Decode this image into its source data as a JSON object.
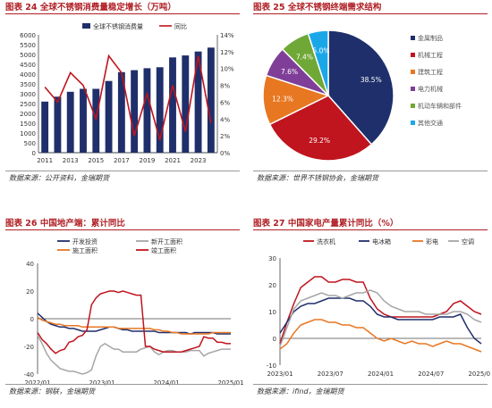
{
  "colors": {
    "accent": "#b01f24",
    "navy": "#1f2f6b",
    "red": "#c0141e",
    "orange": "#e87722",
    "gray": "#a6a6a6",
    "lightgray": "#bdbdbd"
  },
  "panels": [
    {
      "title": "图表 24  全球不锈钢消费量稳定增长（万吨）",
      "source": "数据来源：公开资料，金瑞期货"
    },
    {
      "title": "图表 25  全球不锈钢终端需求结构",
      "source": "数据来源：世界不锈钢协会，金瑞期货"
    },
    {
      "title": "图表 26  中国地产端：累计同比",
      "source": "数据来源：钢联，金瑞期货"
    },
    {
      "title": "图表 27  中国家电产量累计同比（%）",
      "source": "数据来源：ifind，金瑞期货"
    }
  ],
  "chart_data": [
    {
      "type": "bar",
      "title": "全球不锈钢消费量稳定增长（万吨）",
      "x": [
        2011,
        2012,
        2013,
        2014,
        2015,
        2016,
        2017,
        2018,
        2019,
        2020,
        2021,
        2022,
        2023,
        2024
      ],
      "xticks": [
        "2011",
        "2013",
        "2015",
        "2017",
        "2019",
        "2021",
        "2023"
      ],
      "ylim": [
        0,
        6000
      ],
      "yticks": [
        "0",
        "500",
        "1000",
        "1500",
        "2000",
        "2500",
        "3000",
        "3500",
        "4000",
        "4500",
        "5000",
        "5500",
        "6000"
      ],
      "y2lim": [
        0,
        14
      ],
      "y2ticks": [
        "0%",
        "2%",
        "4%",
        "6%",
        "8%",
        "10%",
        "12%",
        "14%"
      ],
      "series": [
        {
          "name": "全球不锈钢消费量",
          "axis": "left",
          "values": [
            2600,
            2850,
            3100,
            3250,
            3250,
            3650,
            4100,
            4200,
            4300,
            4350,
            4850,
            4950,
            5150,
            5350
          ]
        },
        {
          "name": "同比",
          "axis": "right",
          "values": [
            7.8,
            6.0,
            9.5,
            8.0,
            4.0,
            11.5,
            9.5,
            2.0,
            7.0,
            1.5,
            8.0,
            2.5,
            11.5,
            3.5
          ]
        }
      ]
    },
    {
      "type": "pie",
      "title": "全球不锈钢终端需求结构",
      "labels": [
        "金属制品",
        "机械工程",
        "建筑工程",
        "电力机械",
        "机动车辆和部件",
        "其他交通"
      ],
      "values": [
        38.5,
        29.2,
        12.3,
        7.6,
        7.4,
        5.0
      ],
      "value_labels": [
        "38.5%",
        "29.2%",
        "12.3%",
        "7.6%",
        "7.4%",
        "5.0%"
      ],
      "colors": [
        "#1f2f6b",
        "#c0141e",
        "#e87722",
        "#7f3f98",
        "#6fa836",
        "#1aa7e8"
      ],
      "legend": "right"
    },
    {
      "type": "line",
      "title": "中国地产端：累计同比",
      "xticks": [
        "2022/01",
        "2023/01",
        "2024/01",
        "2025/01"
      ],
      "ylim": [
        -40,
        40
      ],
      "yticks": [
        "-40",
        "-20",
        "0",
        "20",
        "40"
      ],
      "legend": "top",
      "series": [
        {
          "name": "开发投资",
          "color": "#1f2f6b",
          "values": [
            4,
            1,
            -2,
            -4,
            -5,
            -6,
            -6,
            -7,
            -7,
            -8,
            -9,
            -9,
            -9,
            -9,
            -8,
            -7,
            -6,
            -6,
            -7,
            -8,
            -8,
            -9,
            -9,
            -9,
            -9,
            -9,
            -9,
            -10,
            -10,
            -10,
            -10,
            -10,
            -10,
            -10,
            -11,
            -10,
            -10,
            -10,
            -10,
            -10,
            -11,
            -11,
            -11,
            -11
          ]
        },
        {
          "name": "新开工面积",
          "color": "#a6a6a6",
          "values": [
            -12,
            -18,
            -25,
            -30,
            -33,
            -36,
            -37,
            -38,
            -38,
            -39,
            -40,
            -39,
            -37,
            -27,
            -20,
            -18,
            -20,
            -22,
            -22,
            -24,
            -24,
            -24,
            -24,
            -22,
            -21,
            -20,
            -24,
            -26,
            -24,
            -23,
            -23,
            -24,
            -24,
            -24,
            -23,
            -23,
            -23,
            -27,
            -25,
            -24,
            -23,
            -22,
            -22,
            -22
          ]
        },
        {
          "name": "施工面积",
          "color": "#e87722",
          "values": [
            1,
            -1,
            -2,
            -3,
            -4,
            -4,
            -5,
            -5,
            -5,
            -5,
            -6,
            -6,
            -6,
            -6,
            -6,
            -6,
            -6,
            -6,
            -7,
            -7,
            -7,
            -7,
            -7,
            -7,
            -7,
            -7,
            -8,
            -8,
            -9,
            -9,
            -10,
            -10,
            -11,
            -11,
            -11,
            -11,
            -11,
            -11,
            -11,
            -10,
            -10,
            -10,
            -10,
            -10
          ]
        },
        {
          "name": "竣工面积",
          "color": "#c0141e",
          "values": [
            -10,
            -15,
            -18,
            -22,
            -25,
            -23,
            -22,
            -17,
            -16,
            -13,
            -12,
            -8,
            10,
            15,
            18,
            19,
            20,
            20,
            19,
            20,
            19,
            18,
            17,
            17,
            -20,
            -20,
            -22,
            -23,
            -24,
            -24,
            -24,
            -24,
            -24,
            -23,
            -22,
            -21,
            -20,
            -13,
            -14,
            -14,
            -17,
            -17,
            -18,
            -18
          ]
        }
      ]
    },
    {
      "type": "line",
      "title": "中国家电产量累计同比（%）",
      "xticks": [
        "2023/01",
        "2023/07",
        "2024/01",
        "2024/07",
        "2025/01"
      ],
      "ylim": [
        -10,
        30
      ],
      "yticks": [
        "-10",
        "0",
        "10",
        "20",
        "30"
      ],
      "legend": "top",
      "series": [
        {
          "name": "洗衣机",
          "color": "#c0141e",
          "values": [
            -2,
            6,
            13,
            19,
            21,
            23,
            23,
            21,
            21,
            22,
            22,
            21,
            21,
            15,
            11,
            9,
            8,
            8,
            8,
            8,
            8,
            8,
            8,
            9,
            10,
            13,
            14,
            12,
            10,
            9
          ]
        },
        {
          "name": "电冰箱",
          "color": "#1f2f6b",
          "values": [
            2,
            6,
            10,
            12,
            13,
            13,
            14,
            15,
            15,
            15,
            15,
            14,
            14,
            12,
            9,
            8,
            8,
            7,
            7,
            7,
            7,
            7,
            7,
            8,
            8,
            8,
            9,
            4,
            0,
            -2
          ]
        },
        {
          "name": "彩电",
          "color": "#e87722",
          "values": [
            -4,
            -2,
            2,
            5,
            6,
            7,
            7,
            6,
            6,
            5,
            5,
            4,
            4,
            2,
            0,
            -1,
            0,
            -1,
            -2,
            -1,
            -2,
            -2,
            -3,
            -2,
            -1,
            -2,
            -2,
            -3,
            -4,
            -5
          ]
        },
        {
          "name": "空调",
          "color": "#a6a6a6",
          "values": [
            -3,
            4,
            11,
            14,
            15,
            16,
            17,
            16,
            16,
            15,
            16,
            17,
            17,
            18,
            17,
            14,
            12,
            11,
            10,
            10,
            10,
            9,
            9,
            9,
            9,
            10,
            10,
            9,
            7,
            6
          ]
        }
      ]
    }
  ]
}
